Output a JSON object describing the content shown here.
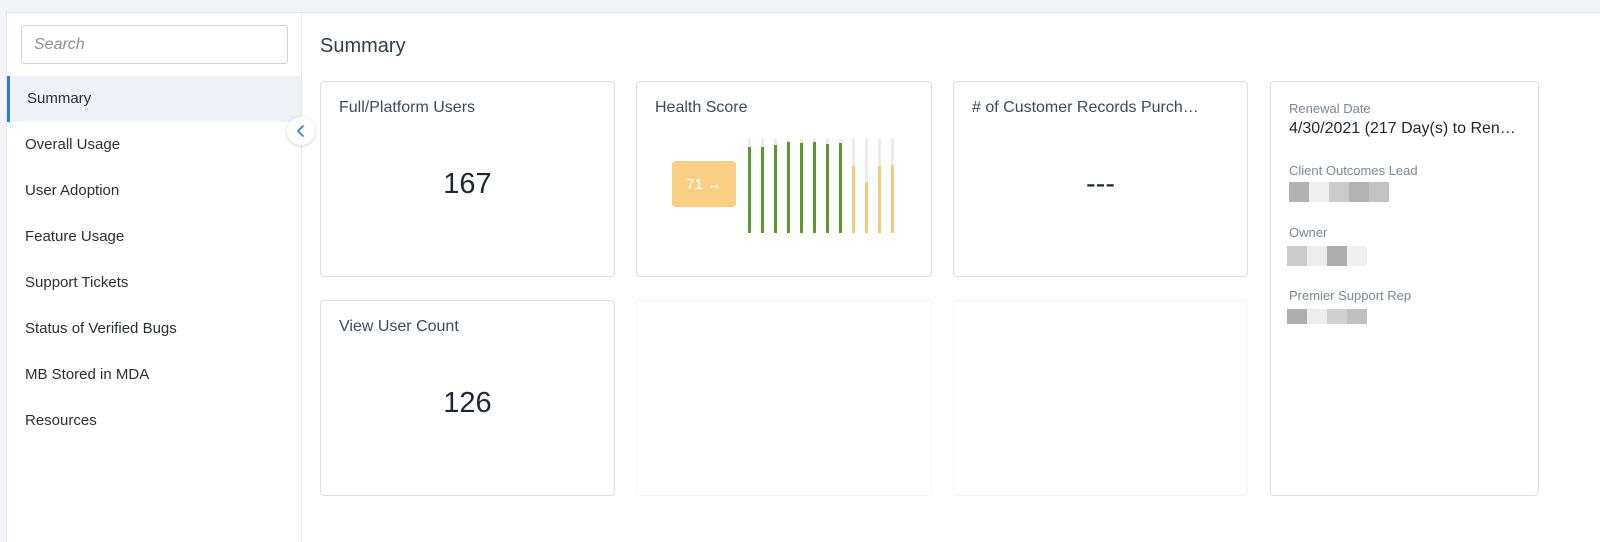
{
  "sidebar": {
    "search_placeholder": "Search",
    "items": [
      {
        "label": "Summary",
        "active": true
      },
      {
        "label": "Overall Usage"
      },
      {
        "label": "User Adoption"
      },
      {
        "label": "Feature Usage"
      },
      {
        "label": "Support Tickets"
      },
      {
        "label": "Status of Verified Bugs"
      },
      {
        "label": "MB Stored in MDA"
      },
      {
        "label": "Resources"
      }
    ],
    "collapse_icon": "chevron-left-icon"
  },
  "main": {
    "title": "Summary",
    "cards": {
      "full_users": {
        "title": "Full/Platform Users",
        "value": "167"
      },
      "health": {
        "title": "Health Score",
        "score": "71",
        "trend_icon": "left-right-arrow-icon",
        "trend_glyph": "↔",
        "bars": [
          {
            "level": 0.92,
            "status": "good"
          },
          {
            "level": 0.92,
            "status": "good"
          },
          {
            "level": 0.94,
            "status": "good"
          },
          {
            "level": 0.97,
            "status": "good"
          },
          {
            "level": 0.96,
            "status": "good"
          },
          {
            "level": 0.97,
            "status": "good"
          },
          {
            "level": 0.95,
            "status": "good"
          },
          {
            "level": 0.96,
            "status": "good"
          },
          {
            "level": 0.71,
            "status": "warning"
          },
          {
            "level": 0.54,
            "status": "warning"
          },
          {
            "level": 0.71,
            "status": "warning"
          },
          {
            "level": 0.72,
            "status": "warning"
          }
        ],
        "colors": {
          "good": "#5a9a2c",
          "warning": "#f7c97c",
          "track": "#ebebeb",
          "badge": "#fbcf83"
        }
      },
      "customer_records": {
        "title": "# of Customer Records Purch…",
        "value": "---"
      },
      "view_users": {
        "title": "View User Count",
        "value": "126"
      }
    },
    "info": {
      "renewal_label": "Renewal Date",
      "renewal_value": "4/30/2021 (217 Day(s) to Ren…",
      "lead_label": "Client Outcomes Lead",
      "owner_label": "Owner",
      "support_label": "Premier Support Rep"
    }
  }
}
